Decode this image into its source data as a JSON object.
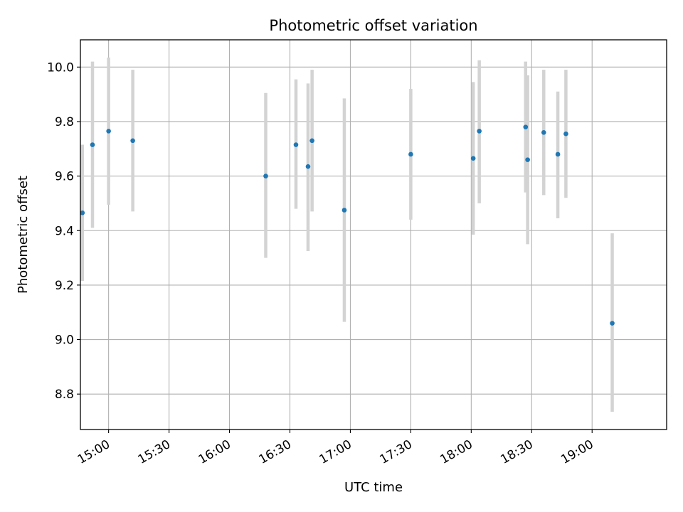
{
  "chart_data": {
    "type": "scatter",
    "title": "Photometric offset variation",
    "xlabel": "UTC time",
    "ylabel": "Photometric offset",
    "x_ticks": [
      "15:00",
      "15:30",
      "16:00",
      "16:30",
      "17:00",
      "17:30",
      "18:00",
      "18:30",
      "19:00"
    ],
    "y_ticks": [
      "8.8",
      "9.0",
      "9.2",
      "9.4",
      "9.6",
      "9.8",
      "10.0"
    ],
    "xlim": [
      "14:46",
      "19:37"
    ],
    "ylim": [
      8.67,
      10.1
    ],
    "grid": true,
    "marker_color": "#1f77b4",
    "errorbar_color": "#d3d3d3",
    "series": [
      {
        "points": [
          {
            "x": "14:47",
            "y": 9.465,
            "low": 9.215,
            "high": 9.715
          },
          {
            "x": "14:52",
            "y": 9.715,
            "low": 9.41,
            "high": 10.02
          },
          {
            "x": "15:00",
            "y": 9.765,
            "low": 9.495,
            "high": 10.035
          },
          {
            "x": "15:12",
            "y": 9.73,
            "low": 9.47,
            "high": 9.99
          },
          {
            "x": "16:18",
            "y": 9.6,
            "low": 9.3,
            "high": 9.905
          },
          {
            "x": "16:33",
            "y": 9.715,
            "low": 9.48,
            "high": 9.955
          },
          {
            "x": "16:39",
            "y": 9.635,
            "low": 9.325,
            "high": 9.94
          },
          {
            "x": "16:41",
            "y": 9.73,
            "low": 9.47,
            "high": 9.99
          },
          {
            "x": "16:57",
            "y": 9.475,
            "low": 9.065,
            "high": 9.885
          },
          {
            "x": "17:30",
            "y": 9.68,
            "low": 9.44,
            "high": 9.92
          },
          {
            "x": "18:01",
            "y": 9.665,
            "low": 9.385,
            "high": 9.945
          },
          {
            "x": "18:04",
            "y": 9.765,
            "low": 9.5,
            "high": 10.025
          },
          {
            "x": "18:27",
            "y": 9.78,
            "low": 9.54,
            "high": 10.02
          },
          {
            "x": "18:28",
            "y": 9.66,
            "low": 9.35,
            "high": 9.97
          },
          {
            "x": "18:36",
            "y": 9.76,
            "low": 9.53,
            "high": 9.99
          },
          {
            "x": "18:43",
            "y": 9.68,
            "low": 9.445,
            "high": 9.91
          },
          {
            "x": "18:47",
            "y": 9.755,
            "low": 9.52,
            "high": 9.99
          },
          {
            "x": "19:10",
            "y": 9.06,
            "low": 8.735,
            "high": 9.39
          }
        ]
      }
    ]
  }
}
